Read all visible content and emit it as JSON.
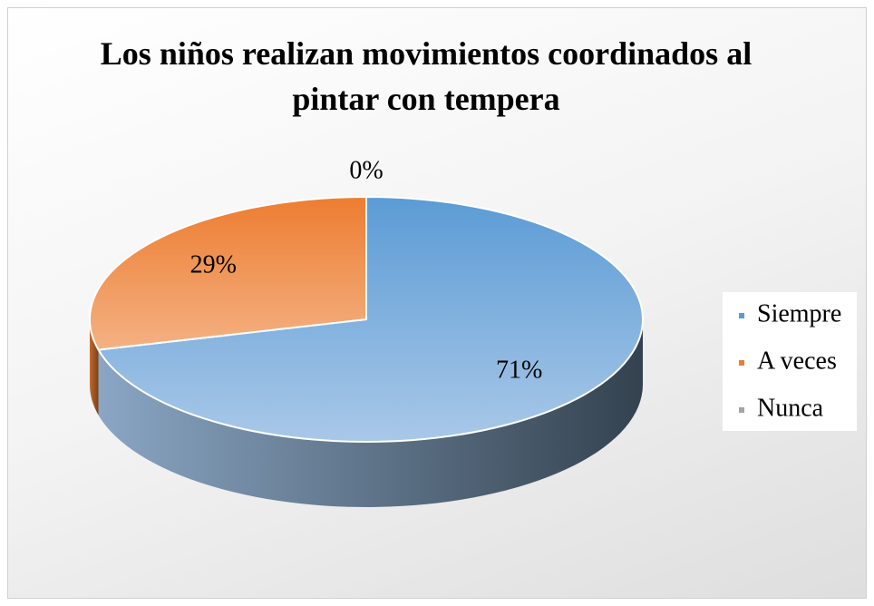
{
  "chart_data": {
    "type": "pie",
    "title": "Los niños realizan movimientos coordinados al pintar con tempera",
    "categories": [
      "Siempre",
      "A veces",
      "Nunca"
    ],
    "values": [
      71,
      29,
      0
    ],
    "value_labels": [
      "71%",
      "29%",
      "0%"
    ],
    "colors": [
      "#5b9bd5",
      "#ed7d31",
      "#a5a5a5"
    ],
    "legend": "right"
  }
}
